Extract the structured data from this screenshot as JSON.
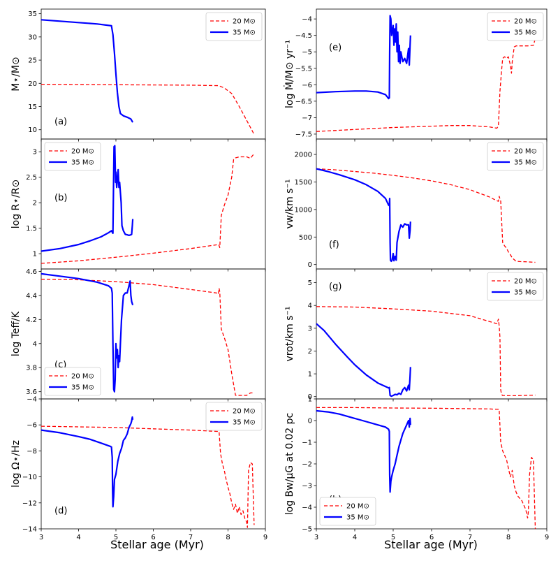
{
  "figure": {
    "xlabel": "Stellar age (Myr)"
  },
  "colors": {
    "m20": "#ff0000",
    "m35": "#0000ff"
  },
  "legend": {
    "m20": "20 M⊙",
    "m35": "35 M⊙"
  },
  "chart_data": [
    {
      "type": "line",
      "id": "a",
      "panel_label": "(a)",
      "ylabel": "M⋆/M⊙",
      "xlim": [
        3,
        9
      ],
      "ylim": [
        8,
        36
      ],
      "yticks": [
        10,
        15,
        20,
        25,
        30,
        35
      ],
      "xticks": [
        3,
        4,
        5,
        6,
        7,
        8,
        9
      ],
      "show_xticklabels": false,
      "legend_loc": "top-right",
      "series": [
        {
          "name": "20 M⊙",
          "style": "dashed",
          "color": "#ff0000",
          "x": [
            3.0,
            4.0,
            5.0,
            6.0,
            7.0,
            7.75,
            7.9,
            8.1,
            8.3,
            8.5,
            8.7
          ],
          "y": [
            19.8,
            19.75,
            19.7,
            19.65,
            19.6,
            19.5,
            19.0,
            17.8,
            15.0,
            12.0,
            9.0
          ]
        },
        {
          "name": "35 M⊙",
          "style": "solid",
          "color": "#0000ff",
          "x": [
            3.0,
            3.5,
            4.0,
            4.5,
            4.88,
            4.92,
            4.96,
            5.0,
            5.04,
            5.08,
            5.12,
            5.2,
            5.3,
            5.4,
            5.45
          ],
          "y": [
            33.7,
            33.4,
            33.1,
            32.8,
            32.4,
            30.5,
            26.5,
            22.0,
            18.0,
            15.0,
            13.5,
            13.0,
            12.7,
            12.3,
            11.6
          ]
        }
      ]
    },
    {
      "type": "line",
      "id": "b",
      "panel_label": "(b)",
      "ylabel": "log R⋆/R⊙",
      "xlim": [
        3,
        9
      ],
      "ylim": [
        0.7,
        3.25
      ],
      "yticks": [
        1.0,
        1.5,
        2.0,
        2.5,
        3.0
      ],
      "xticks": [
        3,
        4,
        5,
        6,
        7,
        8,
        9
      ],
      "show_xticklabels": false,
      "legend_loc": "top-left",
      "series": [
        {
          "name": "20 M⊙",
          "style": "dashed",
          "color": "#ff0000",
          "x": [
            3.0,
            4.0,
            5.0,
            6.0,
            7.0,
            7.75,
            7.78,
            7.82,
            7.9,
            8.0,
            8.1,
            8.15,
            8.2,
            8.3,
            8.5,
            8.6,
            8.65,
            8.7
          ],
          "y": [
            0.81,
            0.86,
            0.93,
            1.01,
            1.1,
            1.18,
            1.12,
            1.75,
            1.95,
            2.15,
            2.5,
            2.85,
            2.88,
            2.9,
            2.9,
            2.87,
            2.92,
            2.96
          ]
        },
        {
          "name": "35 M⊙",
          "style": "solid",
          "color": "#0000ff",
          "x": [
            3.0,
            3.5,
            4.0,
            4.3,
            4.6,
            4.8,
            4.88,
            4.92,
            4.94,
            4.95,
            4.97,
            4.99,
            5.0,
            5.02,
            5.04,
            5.06,
            5.08,
            5.1,
            5.12,
            5.14,
            5.16,
            5.2,
            5.25,
            5.3,
            5.35,
            5.4,
            5.42,
            5.44,
            5.45
          ],
          "y": [
            1.05,
            1.1,
            1.18,
            1.25,
            1.33,
            1.41,
            1.45,
            1.4,
            2.6,
            3.1,
            3.12,
            2.4,
            2.6,
            2.3,
            2.45,
            2.65,
            2.3,
            2.4,
            2.2,
            2.0,
            1.55,
            1.45,
            1.38,
            1.37,
            1.36,
            1.37,
            1.38,
            1.55,
            1.68
          ]
        }
      ]
    },
    {
      "type": "line",
      "id": "c",
      "panel_label": "(c)",
      "ylabel": "log Teff/K",
      "xlim": [
        3,
        9
      ],
      "ylim": [
        3.54,
        4.62
      ],
      "yticks": [
        3.6,
        3.8,
        4.0,
        4.2,
        4.4,
        4.6
      ],
      "xticks": [
        3,
        4,
        5,
        6,
        7,
        8,
        9
      ],
      "show_xticklabels": false,
      "legend_loc": "bottom-left",
      "series": [
        {
          "name": "20 M⊙",
          "style": "dashed",
          "color": "#ff0000",
          "x": [
            3.0,
            4.0,
            5.0,
            6.0,
            7.0,
            7.7,
            7.74,
            7.76,
            7.78,
            7.82,
            7.9,
            8.0,
            8.05,
            8.1,
            8.15,
            8.2,
            8.3,
            8.4,
            8.5,
            8.6,
            8.7
          ],
          "y": [
            4.535,
            4.53,
            4.515,
            4.49,
            4.45,
            4.42,
            4.41,
            4.46,
            4.43,
            4.12,
            4.05,
            3.95,
            3.85,
            3.75,
            3.66,
            3.57,
            3.57,
            3.57,
            3.57,
            3.59,
            3.59
          ]
        },
        {
          "name": "35 M⊙",
          "style": "solid",
          "color": "#0000ff",
          "x": [
            3.0,
            3.5,
            4.0,
            4.5,
            4.8,
            4.88,
            4.9,
            4.92,
            4.94,
            4.96,
            4.98,
            5.0,
            5.02,
            5.04,
            5.06,
            5.08,
            5.1,
            5.12,
            5.15,
            5.2,
            5.25,
            5.3,
            5.35,
            5.38,
            5.4,
            5.42,
            5.45
          ],
          "y": [
            4.58,
            4.56,
            4.54,
            4.51,
            4.48,
            4.46,
            4.42,
            4.0,
            3.62,
            3.6,
            3.7,
            4.0,
            3.88,
            3.95,
            3.8,
            3.9,
            3.85,
            4.0,
            4.2,
            4.4,
            4.42,
            4.42,
            4.48,
            4.52,
            4.4,
            4.35,
            4.32
          ]
        }
      ]
    },
    {
      "type": "line",
      "id": "d",
      "panel_label": "(d)",
      "ylabel": "log Ω⋆/Hz",
      "xlim": [
        3,
        9
      ],
      "ylim": [
        -14,
        -4
      ],
      "yticks": [
        -14,
        -12,
        -10,
        -8,
        -6,
        -4
      ],
      "xticks": [
        3,
        4,
        5,
        6,
        7,
        8,
        9
      ],
      "show_xticklabels": true,
      "legend_loc": "top-right",
      "series": [
        {
          "name": "20 M⊙",
          "style": "dashed",
          "color": "#ff0000",
          "x": [
            3.0,
            4.0,
            5.0,
            6.0,
            7.0,
            7.7,
            7.76,
            7.8,
            7.85,
            7.9,
            7.95,
            8.0,
            8.05,
            8.1,
            8.15,
            8.2,
            8.25,
            8.3,
            8.35,
            8.4,
            8.45,
            8.5,
            8.52,
            8.55,
            8.6,
            8.65,
            8.7
          ],
          "y": [
            -6.1,
            -6.15,
            -6.2,
            -6.3,
            -6.4,
            -6.5,
            -6.5,
            -8.2,
            -9.0,
            -9.5,
            -10.2,
            -10.8,
            -11.3,
            -12.0,
            -12.5,
            -12.1,
            -12.8,
            -12.3,
            -12.9,
            -12.6,
            -13.2,
            -13.5,
            -13.9,
            -9.5,
            -8.9,
            -9.0,
            -13.7
          ]
        },
        {
          "name": "35 M⊙",
          "style": "solid",
          "color": "#0000ff",
          "x": [
            3.0,
            3.5,
            4.0,
            4.3,
            4.6,
            4.85,
            4.88,
            4.9,
            4.91,
            4.92,
            4.94,
            4.96,
            5.0,
            5.05,
            5.1,
            5.15,
            5.2,
            5.25,
            5.3,
            5.35,
            5.4,
            5.42,
            5.44,
            5.45
          ],
          "y": [
            -6.4,
            -6.6,
            -6.9,
            -7.1,
            -7.4,
            -7.65,
            -7.7,
            -8.5,
            -11.0,
            -12.3,
            -11.5,
            -10.2,
            -9.8,
            -8.8,
            -8.2,
            -7.8,
            -7.2,
            -7.0,
            -6.7,
            -6.2,
            -5.9,
            -5.7,
            -5.4,
            -5.6
          ]
        }
      ]
    },
    {
      "type": "line",
      "id": "e",
      "panel_label": "(e)",
      "ylabel": "log Ṁ/M⊙ yr⁻¹",
      "xlim": [
        3,
        9
      ],
      "ylim": [
        -7.65,
        -3.7
      ],
      "yticks": [
        -7.5,
        -7.0,
        -6.5,
        -6.0,
        -5.5,
        -5.0,
        -4.5,
        -4.0
      ],
      "xticks": [
        3,
        4,
        5,
        6,
        7,
        8,
        9
      ],
      "show_xticklabels": false,
      "legend_loc": "top-right",
      "series": [
        {
          "name": "20 M⊙",
          "style": "dashed",
          "color": "#ff0000",
          "x": [
            3.0,
            4.0,
            5.0,
            6.0,
            6.5,
            7.0,
            7.5,
            7.7,
            7.74,
            7.78,
            7.82,
            7.85,
            7.9,
            7.95,
            8.0,
            8.05,
            8.08,
            8.1,
            8.15,
            8.2,
            8.3,
            8.5,
            8.65,
            8.7
          ],
          "y": [
            -7.42,
            -7.36,
            -7.3,
            -7.26,
            -7.24,
            -7.24,
            -7.28,
            -7.32,
            -7.25,
            -6.2,
            -5.6,
            -5.2,
            -5.15,
            -5.2,
            -5.15,
            -5.4,
            -5.65,
            -5.3,
            -4.85,
            -4.82,
            -4.82,
            -4.82,
            -4.8,
            -4.6
          ]
        },
        {
          "name": "35 M⊙",
          "style": "solid",
          "color": "#0000ff",
          "x": [
            3.0,
            3.5,
            4.0,
            4.3,
            4.6,
            4.8,
            4.88,
            4.9,
            4.91,
            4.92,
            4.94,
            4.96,
            5.0,
            5.02,
            5.04,
            5.06,
            5.08,
            5.1,
            5.12,
            5.14,
            5.16,
            5.18,
            5.2,
            5.25,
            5.3,
            5.35,
            5.4,
            5.42,
            5.44,
            5.45
          ],
          "y": [
            -6.24,
            -6.21,
            -6.19,
            -6.19,
            -6.22,
            -6.3,
            -6.42,
            -6.4,
            -5.0,
            -3.9,
            -4.0,
            -4.5,
            -4.2,
            -4.8,
            -4.3,
            -4.7,
            -4.15,
            -5.0,
            -4.4,
            -5.3,
            -4.8,
            -5.35,
            -5.0,
            -5.3,
            -5.2,
            -5.35,
            -4.9,
            -5.4,
            -4.8,
            -4.5
          ]
        }
      ]
    },
    {
      "type": "line",
      "id": "f",
      "panel_label": "(f)",
      "ylabel": "vw/km s⁻¹",
      "xlim": [
        3,
        9
      ],
      "ylim": [
        -80,
        2280
      ],
      "yticks": [
        0,
        500,
        1000,
        1500,
        2000
      ],
      "xticks": [
        3,
        4,
        5,
        6,
        7,
        8,
        9
      ],
      "show_xticklabels": false,
      "legend_loc": "top-right",
      "series": [
        {
          "name": "20 M⊙",
          "style": "dashed",
          "color": "#ff0000",
          "x": [
            3.0,
            3.5,
            4.0,
            4.5,
            5.0,
            5.5,
            6.0,
            6.5,
            7.0,
            7.5,
            7.7,
            7.74,
            7.76,
            7.8,
            7.85,
            7.9,
            7.95,
            8.0,
            8.05,
            8.1,
            8.2,
            8.3,
            8.5,
            8.7
          ],
          "y": [
            1740,
            1720,
            1690,
            1660,
            1620,
            1575,
            1520,
            1450,
            1360,
            1230,
            1160,
            1150,
            1240,
            1150,
            400,
            340,
            300,
            230,
            180,
            120,
            60,
            55,
            50,
            40
          ]
        },
        {
          "name": "35 M⊙",
          "style": "solid",
          "color": "#0000ff",
          "x": [
            3.0,
            3.3,
            3.6,
            4.0,
            4.3,
            4.6,
            4.8,
            4.88,
            4.9,
            4.91,
            4.92,
            4.93,
            4.95,
            4.97,
            5.0,
            5.02,
            5.05,
            5.08,
            5.1,
            5.15,
            5.2,
            5.25,
            5.3,
            5.35,
            5.4,
            5.42,
            5.44,
            5.45
          ],
          "y": [
            1740,
            1690,
            1630,
            1540,
            1450,
            1330,
            1200,
            1080,
            1070,
            1200,
            400,
            80,
            60,
            80,
            200,
            70,
            150,
            80,
            400,
            600,
            720,
            680,
            740,
            720,
            720,
            480,
            620,
            780
          ]
        }
      ]
    },
    {
      "type": "line",
      "id": "g",
      "panel_label": "(g)",
      "ylabel": "vrot/km s⁻¹",
      "xlim": [
        3,
        9
      ],
      "ylim": [
        -0.1,
        5.6
      ],
      "yticks": [
        0,
        1,
        2,
        3,
        4,
        5
      ],
      "xticks": [
        3,
        4,
        5,
        6,
        7,
        8,
        9
      ],
      "show_xticklabels": false,
      "legend_loc": "top-right",
      "series": [
        {
          "name": "20 M⊙",
          "style": "dashed",
          "color": "#ff0000",
          "x": [
            3.0,
            4.0,
            5.0,
            6.0,
            7.0,
            7.5,
            7.7,
            7.74,
            7.76,
            7.78,
            7.8,
            7.82,
            7.85,
            7.9,
            8.0,
            8.2,
            8.5,
            8.7
          ],
          "y": [
            3.95,
            3.93,
            3.85,
            3.75,
            3.55,
            3.3,
            3.2,
            3.4,
            3.1,
            2.6,
            0.3,
            0.1,
            0.05,
            0.05,
            0.04,
            0.04,
            0.06,
            0.07
          ]
        },
        {
          "name": "35 M⊙",
          "style": "solid",
          "color": "#0000ff",
          "x": [
            3.0,
            3.2,
            3.5,
            3.8,
            4.0,
            4.3,
            4.6,
            4.88,
            4.9,
            4.92,
            4.95,
            5.0,
            5.05,
            5.1,
            5.15,
            5.2,
            5.25,
            5.3,
            5.35,
            5.4,
            5.42,
            5.44,
            5.45
          ],
          "y": [
            3.2,
            2.9,
            2.3,
            1.75,
            1.4,
            0.95,
            0.6,
            0.38,
            0.4,
            0.05,
            0.02,
            0.05,
            0.1,
            0.08,
            0.15,
            0.1,
            0.3,
            0.4,
            0.25,
            0.5,
            0.3,
            0.9,
            1.3
          ]
        }
      ]
    },
    {
      "type": "line",
      "id": "h",
      "panel_label": "(h)",
      "ylabel": "log Bw/μG at 0.02 pc",
      "xlim": [
        3,
        9
      ],
      "ylim": [
        -5,
        1
      ],
      "yticks": [
        -5,
        -4,
        -3,
        -2,
        -1,
        0,
        1
      ],
      "xticks": [
        3,
        4,
        5,
        6,
        7,
        8,
        9
      ],
      "show_xticklabels": true,
      "legend_loc": "bottom-left",
      "series": [
        {
          "name": "20 M⊙",
          "style": "dashed",
          "color": "#ff0000",
          "x": [
            3.0,
            4.0,
            5.0,
            6.0,
            7.0,
            7.5,
            7.7,
            7.76,
            7.8,
            7.85,
            7.9,
            7.95,
            8.0,
            8.05,
            8.1,
            8.15,
            8.2,
            8.25,
            8.3,
            8.35,
            8.4,
            8.45,
            8.5,
            8.52,
            8.55,
            8.6,
            8.65,
            8.7
          ],
          "y": [
            0.6,
            0.6,
            0.58,
            0.57,
            0.55,
            0.54,
            0.52,
            0.52,
            -1.0,
            -1.4,
            -1.6,
            -1.8,
            -2.2,
            -2.6,
            -2.3,
            -3.0,
            -3.3,
            -3.5,
            -3.6,
            -3.7,
            -3.9,
            -4.1,
            -4.5,
            -4.2,
            -2.5,
            -1.7,
            -1.8,
            -5.0
          ]
        },
        {
          "name": "35 M⊙",
          "style": "solid",
          "color": "#0000ff",
          "x": [
            3.0,
            3.3,
            3.6,
            4.0,
            4.3,
            4.6,
            4.8,
            4.88,
            4.9,
            4.91,
            4.92,
            4.94,
            4.96,
            5.0,
            5.05,
            5.1,
            5.15,
            5.2,
            5.25,
            5.3,
            5.35,
            5.4,
            5.42,
            5.44,
            5.45
          ],
          "y": [
            0.45,
            0.4,
            0.3,
            0.1,
            -0.05,
            -0.2,
            -0.3,
            -0.4,
            -0.5,
            -2.5,
            -3.3,
            -2.8,
            -2.6,
            -2.3,
            -2.0,
            -1.6,
            -1.2,
            -0.9,
            -0.6,
            -0.4,
            -0.2,
            0.0,
            -0.3,
            0.1,
            -0.2
          ]
        }
      ]
    }
  ]
}
